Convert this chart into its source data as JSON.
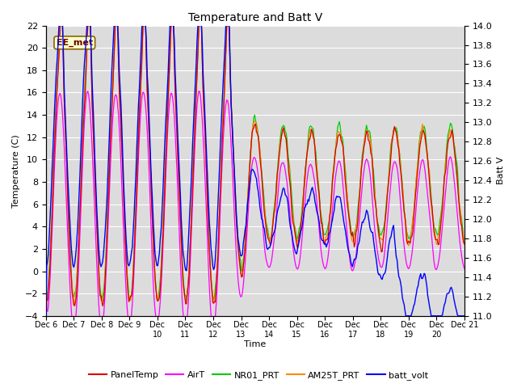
{
  "title": "Temperature and Batt V",
  "ylabel_left": "Temperature (C)",
  "ylabel_right": "Batt V",
  "xlabel": "Time",
  "ylim_left": [
    -4,
    22
  ],
  "ylim_right": [
    11.0,
    14.0
  ],
  "colors": {
    "PanelTemp": "#dd0000",
    "AirT": "#ff00ff",
    "NR01_PRT": "#00cc00",
    "AM25T_PRT": "#ff8800",
    "batt_volt": "#0000ff"
  },
  "annotation_text": "EE_met",
  "annotation_fg": "#660000",
  "annotation_bg": "#ffffcc",
  "annotation_edge": "#886600",
  "plot_bg_color": "#dcdcdc",
  "grid_color": "#ffffff",
  "n_points": 480
}
